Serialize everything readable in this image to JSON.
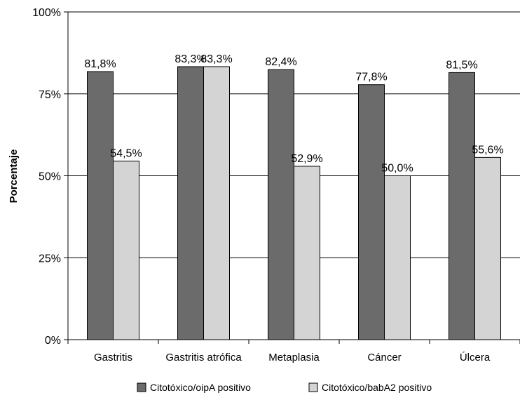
{
  "chart_data": {
    "type": "bar",
    "title": "",
    "xlabel": "",
    "ylabel": "Porcentaje",
    "ylim": [
      0,
      100
    ],
    "yticks": [
      {
        "value": 0,
        "label": "0%"
      },
      {
        "value": 25,
        "label": "25%"
      },
      {
        "value": 50,
        "label": "50%"
      },
      {
        "value": 75,
        "label": "75%"
      },
      {
        "value": 100,
        "label": "100%"
      }
    ],
    "grid": true,
    "legend_position": "bottom",
    "categories": [
      "Gastritis",
      "Gastritis atrófica",
      "Metaplasia",
      "Cáncer",
      "Úlcera"
    ],
    "series": [
      {
        "name": "Citotóxico/oipA positivo",
        "color": "#6b6b6b",
        "values": [
          81.8,
          83.3,
          82.4,
          77.8,
          81.5
        ],
        "labels": [
          "81,8%",
          "83,3%",
          "82,4%",
          "77,8%",
          "81,5%"
        ]
      },
      {
        "name": "Citotóxico/babA2 positivo",
        "color": "#d4d4d4",
        "values": [
          54.5,
          83.3,
          52.9,
          50.0,
          55.6
        ],
        "labels": [
          "54,5%",
          "83,3%",
          "52,9%",
          "50,0%",
          "55,6%"
        ]
      }
    ]
  }
}
